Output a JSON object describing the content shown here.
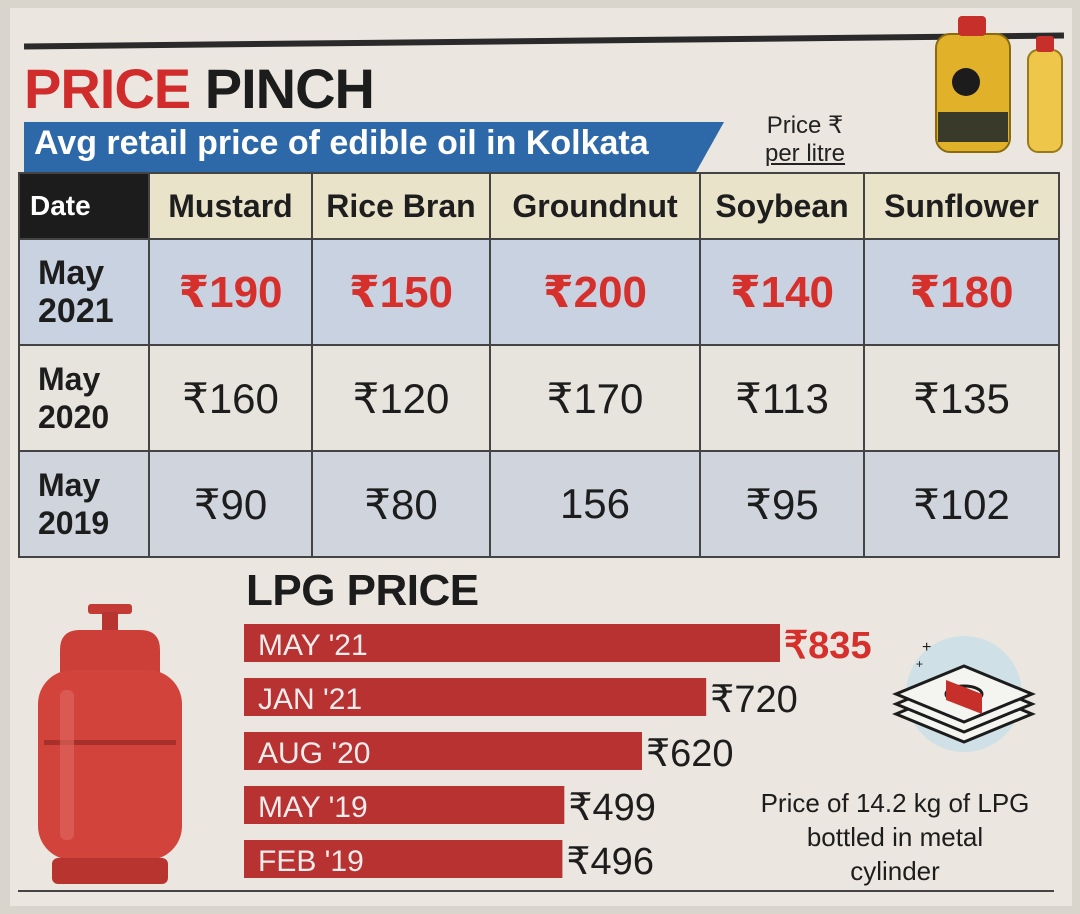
{
  "header": {
    "title_part1": "PRICE",
    "title_part2": "PINCH",
    "subtitle": "Avg retail price of edible oil in Kolkata",
    "price_unit_line1": "Price ₹",
    "price_unit_line2": "per litre"
  },
  "oil_table": {
    "headers": [
      "Date",
      "Mustard",
      "Rice Bran",
      "Groundnut",
      "Soybean",
      "Sunflower"
    ],
    "rows": [
      {
        "month": "May",
        "year": "2021",
        "values": [
          "₹190",
          "₹150",
          "₹200",
          "₹140",
          "₹180"
        ]
      },
      {
        "month": "May",
        "year": "2020",
        "values": [
          "₹160",
          "₹120",
          "₹170",
          "₹113",
          "₹135"
        ]
      },
      {
        "month": "May",
        "year": "2019",
        "values": [
          "₹90",
          "₹80",
          "156",
          "₹95",
          "₹102"
        ]
      }
    ]
  },
  "lpg": {
    "title": "LPG PRICE",
    "note": "Price of 14.2 kg of LPG bottled in metal cylinder"
  },
  "chart_data": {
    "type": "bar",
    "orientation": "horizontal",
    "title": "LPG PRICE",
    "categories": [
      "MAY '21",
      "JAN '21",
      "AUG '20",
      "MAY '19",
      "FEB '19"
    ],
    "values": [
      835,
      720,
      620,
      499,
      496
    ],
    "value_labels": [
      "₹835",
      "₹720",
      "₹620",
      "₹499",
      "₹496"
    ],
    "xlabel": "",
    "ylabel": "",
    "xlim": [
      0,
      835
    ],
    "colors": {
      "bar": "#b83232",
      "highlight_label": "#d6302c"
    }
  },
  "colors": {
    "title_red": "#d12c2c",
    "subtitle_blue": "#2d68a8",
    "bar_red": "#b83232"
  }
}
